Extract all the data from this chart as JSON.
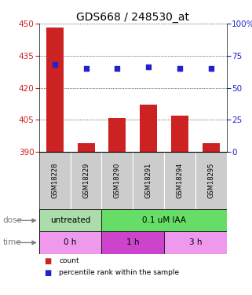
{
  "title": "GDS668 / 248530_at",
  "samples": [
    "GSM18228",
    "GSM18229",
    "GSM18290",
    "GSM18291",
    "GSM18294",
    "GSM18295"
  ],
  "bar_values": [
    448,
    394,
    406,
    412,
    407,
    394
  ],
  "bar_bottom": 390,
  "dot_values": [
    68,
    65,
    65,
    66,
    65,
    65
  ],
  "left_yticks": [
    390,
    405,
    420,
    435,
    450
  ],
  "right_yticks": [
    0,
    25,
    50,
    75,
    100
  ],
  "left_ylim": [
    390,
    450
  ],
  "right_ylim": [
    0,
    100
  ],
  "bar_color": "#cc2222",
  "dot_color": "#2222cc",
  "dose_labels": [
    {
      "label": "untreated",
      "start": 0,
      "end": 2,
      "color": "#aaddaa"
    },
    {
      "label": "0.1 uM IAA",
      "start": 2,
      "end": 6,
      "color": "#66dd66"
    }
  ],
  "time_labels": [
    {
      "label": "0 h",
      "start": 0,
      "end": 2,
      "color": "#ee99ee"
    },
    {
      "label": "1 h",
      "start": 2,
      "end": 4,
      "color": "#cc44cc"
    },
    {
      "label": "3 h",
      "start": 4,
      "end": 6,
      "color": "#ee99ee"
    }
  ],
  "sample_bg_color": "#cccccc",
  "left_tick_color": "#cc2222",
  "right_tick_color": "#2222cc",
  "title_fontsize": 10,
  "tick_fontsize": 7.5,
  "label_fontsize": 7.5
}
